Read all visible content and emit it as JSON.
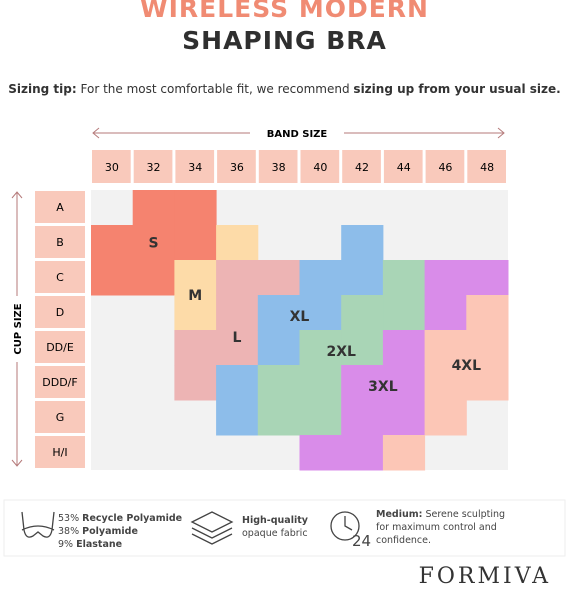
{
  "header": {
    "title_line1": "WIRELESS MODERN",
    "title_line2": "SHAPING BRA"
  },
  "tip": {
    "label": "Sizing tip:",
    "text": "For the most comfortable fit, we recommend",
    "emphasis": "sizing up from your usual size."
  },
  "chart": {
    "band_axis": "BAND SIZE",
    "cup_axis": "CUP SIZE",
    "bands": [
      "30",
      "32",
      "34",
      "36",
      "38",
      "40",
      "42",
      "44",
      "46",
      "48"
    ],
    "cups": [
      "A",
      "B",
      "C",
      "D",
      "DD/E",
      "DDD/F",
      "G",
      "H/I"
    ],
    "sizes": [
      {
        "label": "S"
      },
      {
        "label": "M"
      },
      {
        "label": "L"
      },
      {
        "label": "XL"
      },
      {
        "label": "2XL"
      },
      {
        "label": "3XL"
      },
      {
        "label": "4XL"
      }
    ]
  },
  "features": [
    {
      "lines": [
        "53% ",
        "Recycle Polyamide",
        "38% ",
        "Polyamide",
        "9% ",
        "Elastane"
      ]
    },
    {
      "bold": "High-quality",
      "text": "opaque fabric"
    },
    {
      "bold": "Medium:",
      "text": "Serene sculpting for maximum control and confidence."
    }
  ],
  "brand": "FORMIVA"
}
